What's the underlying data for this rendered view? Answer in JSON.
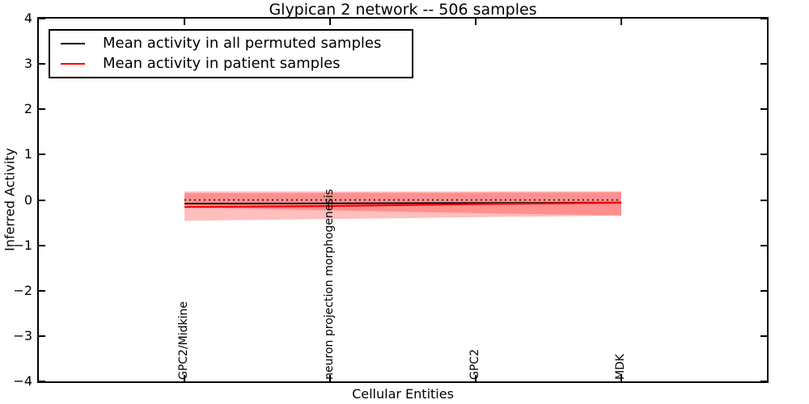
{
  "title": "Glypican 2 network -- 506 samples",
  "axes": {
    "xlabel": "Cellular Entities",
    "ylabel": "Inferred Activity",
    "yticks": [
      {
        "label": "4",
        "value": 4
      },
      {
        "label": "3",
        "value": 3
      },
      {
        "label": "2",
        "value": 2
      },
      {
        "label": "1",
        "value": 1
      },
      {
        "label": "0",
        "value": 0
      },
      {
        "label": "−1",
        "value": -1
      },
      {
        "label": "−2",
        "value": -2
      },
      {
        "label": "−3",
        "value": -3
      },
      {
        "label": "−4",
        "value": -4
      }
    ]
  },
  "legend": {
    "items": [
      {
        "label": "Mean activity in all permuted samples",
        "color": "#000000"
      },
      {
        "label": "Mean activity in patient samples",
        "color": "#ff0000"
      }
    ]
  },
  "chart_data": {
    "type": "line",
    "title": "Glypican 2 network -- 506 samples",
    "xlabel": "Cellular Entities",
    "ylabel": "Inferred Activity",
    "xlim": [
      0,
      5
    ],
    "ylim": [
      -4,
      4
    ],
    "grid": false,
    "legend_position": "upper left",
    "categories": [
      "GPC2/Midkine",
      "neuron projection morphogenesis",
      "GPC2",
      "MDK"
    ],
    "x": [
      1,
      2,
      3,
      4
    ],
    "series": [
      {
        "name": "Mean activity in all permuted samples",
        "color": "#000000",
        "style": "solid",
        "width": 1.8,
        "values": [
          -0.08,
          -0.075,
          -0.065,
          -0.055
        ]
      },
      {
        "name": "Mean activity in patient samples",
        "color": "#ff0000",
        "style": "solid",
        "width": 2.2,
        "values": [
          -0.155,
          -0.135,
          -0.09,
          -0.06
        ]
      }
    ],
    "reference_line": {
      "name": "zero-line",
      "color": "#000000",
      "style": "dotted",
      "width": 1.6,
      "values": [
        0,
        0,
        0,
        0
      ]
    },
    "bands": [
      {
        "name": "permuted-activity-band",
        "color": "#ff0000",
        "alpha": 0.25,
        "upper": [
          0.15,
          0.155,
          0.16,
          0.17
        ],
        "lower": [
          -0.17,
          -0.23,
          -0.29,
          -0.345
        ]
      },
      {
        "name": "patient-activity-band",
        "color": "#ff0000",
        "alpha": 0.25,
        "upper": [
          0.19,
          0.19,
          0.19,
          0.195
        ],
        "lower": [
          -0.46,
          -0.42,
          -0.38,
          -0.345
        ]
      }
    ]
  }
}
